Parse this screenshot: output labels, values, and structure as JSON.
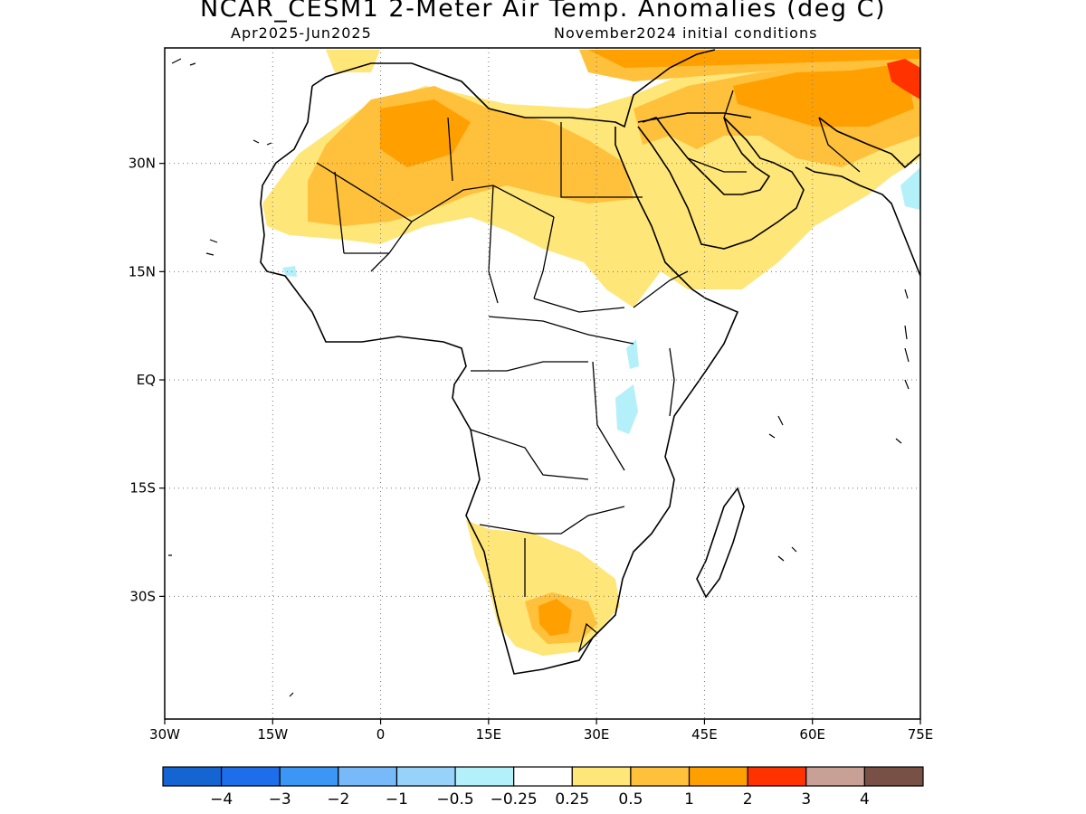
{
  "title": "NCAR_CESM1 2-Meter Air Temp. Anomalies (deg C)",
  "subtitle_left": "Apr2025-Jun2025",
  "subtitle_right": "November2024 initial conditions",
  "map": {
    "lon_range": [
      -30,
      75
    ],
    "lat_range": [
      -47,
      46
    ],
    "lon_ticks": [
      {
        "value": -30,
        "label": "30W"
      },
      {
        "value": -15,
        "label": "15W"
      },
      {
        "value": 0,
        "label": "0"
      },
      {
        "value": 15,
        "label": "15E"
      },
      {
        "value": 30,
        "label": "30E"
      },
      {
        "value": 45,
        "label": "45E"
      },
      {
        "value": 60,
        "label": "60E"
      },
      {
        "value": 75,
        "label": "75E"
      }
    ],
    "lat_ticks": [
      {
        "value": 30,
        "label": "30N"
      },
      {
        "value": 15,
        "label": "15N"
      },
      {
        "value": 0,
        "label": "EQ"
      },
      {
        "value": -15,
        "label": "15S"
      },
      {
        "value": -30,
        "label": "30S"
      }
    ],
    "grid": "dotted"
  },
  "colorbar": {
    "colors": [
      "#1464d2",
      "#1e6eeb",
      "#3c96f5",
      "#78b9fa",
      "#96d2fa",
      "#b4f0fa",
      "#ffffff",
      "#ffe678",
      "#ffc03c",
      "#ffa000",
      "#ff3200",
      "#c8a096",
      "#785046"
    ],
    "labels": [
      "-4",
      "-3",
      "-2",
      "-1",
      "-0.5",
      "-0.25",
      "0.25",
      "0.5",
      "1",
      "2",
      "3",
      "4"
    ]
  }
}
